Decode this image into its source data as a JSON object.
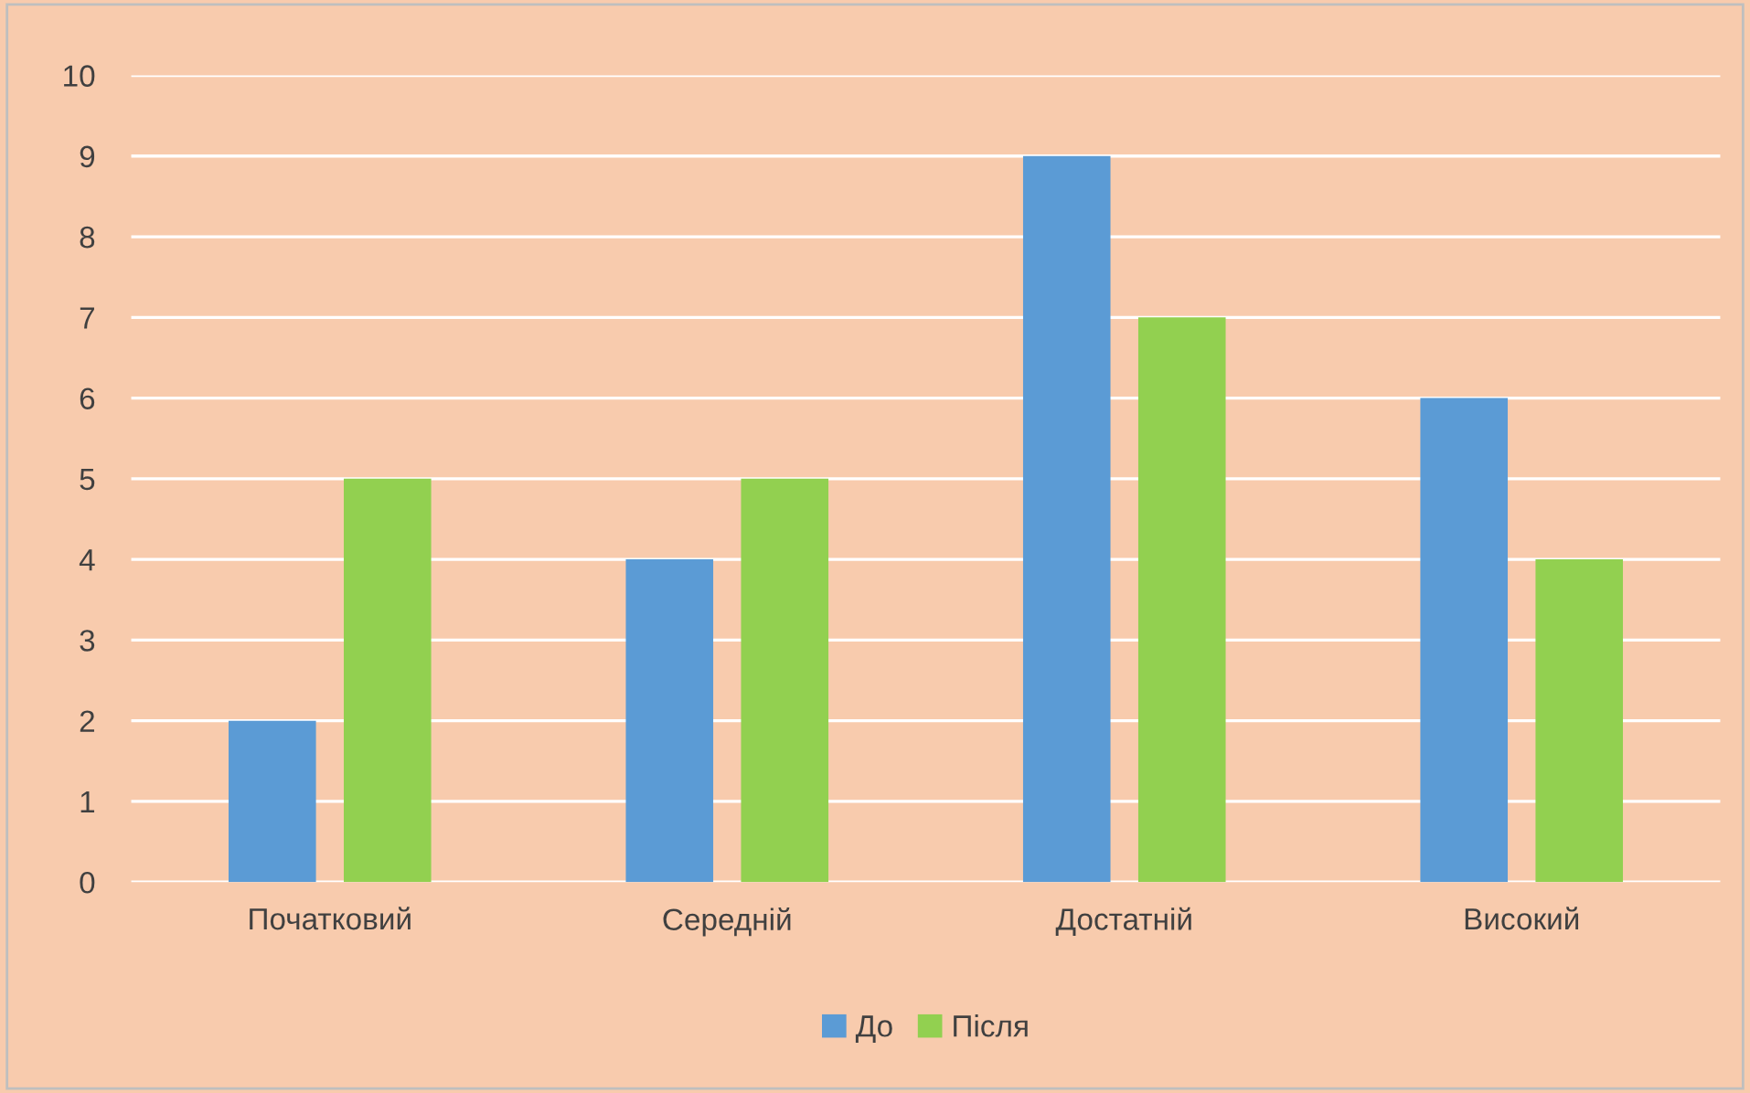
{
  "chart_data": {
    "type": "bar",
    "categories": [
      "Початковий",
      "Середній",
      "Достатній",
      "Високий"
    ],
    "series": [
      {
        "name": "До",
        "color": "#5b9bd5",
        "values": [
          2,
          4,
          9,
          6
        ]
      },
      {
        "name": "Після",
        "color": "#92d050",
        "values": [
          5,
          5,
          7,
          4
        ]
      }
    ],
    "ylim": [
      0,
      10
    ],
    "yticks": [
      0,
      1,
      2,
      3,
      4,
      5,
      6,
      7,
      8,
      9,
      10
    ],
    "grid": "y",
    "legend": "bottom"
  }
}
